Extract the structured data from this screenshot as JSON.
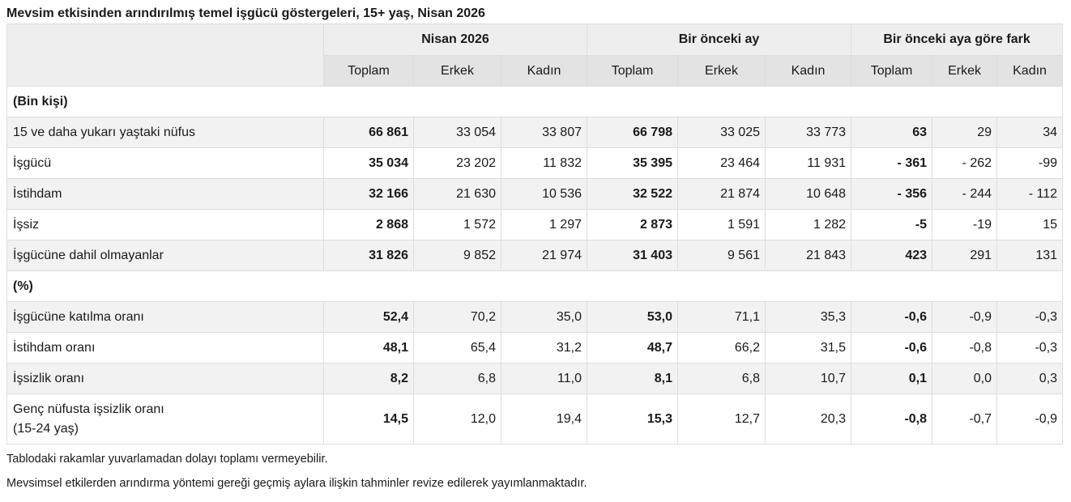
{
  "title": "Mevsim etkisinden arındırılmış temel işgücü göstergeleri, 15+ yaş, Nisan 2026",
  "header": {
    "groups": [
      "Nisan 2026",
      "Bir önceki ay",
      "Bir önceki aya göre fark"
    ],
    "subs": [
      "Toplam",
      "Erkek",
      "Kadın",
      "Toplam",
      "Erkek",
      "Kadın",
      "Toplam",
      "Erkek",
      "Kadın"
    ]
  },
  "sections": [
    {
      "label": "(Bin kişi)",
      "rows": [
        {
          "label": "15 ve daha yukarı yaştaki nüfus",
          "values": [
            "66 861",
            "33 054",
            "33 807",
            "66 798",
            "33 025",
            "33 773",
            "63",
            "29",
            "34"
          ]
        },
        {
          "label": "İşgücü",
          "values": [
            "35 034",
            "23 202",
            "11 832",
            "35 395",
            "23 464",
            "11 931",
            "- 361",
            "- 262",
            "-99"
          ]
        },
        {
          "label": "İstihdam",
          "values": [
            "32 166",
            "21 630",
            "10 536",
            "32 522",
            "21 874",
            "10 648",
            "- 356",
            "- 244",
            "- 112"
          ]
        },
        {
          "label": "İşsiz",
          "values": [
            "2 868",
            "1 572",
            "1 297",
            "2 873",
            "1 591",
            "1 282",
            "-5",
            "-19",
            "15"
          ]
        },
        {
          "label": "İşgücüne dahil olmayanlar",
          "values": [
            "31 826",
            "9 852",
            "21 974",
            "31 403",
            "9 561",
            "21 843",
            "423",
            "291",
            "131"
          ]
        }
      ]
    },
    {
      "label": "(%)",
      "rows": [
        {
          "label": "İşgücüne katılma oranı",
          "values": [
            "52,4",
            "70,2",
            "35,0",
            "53,0",
            "71,1",
            "35,3",
            "-0,6",
            "-0,9",
            "-0,3"
          ]
        },
        {
          "label": "İstihdam oranı",
          "values": [
            "48,1",
            "65,4",
            "31,2",
            "48,7",
            "66,2",
            "31,5",
            "-0,6",
            "-0,8",
            "-0,3"
          ]
        },
        {
          "label": "İşsizlik oranı",
          "values": [
            "8,2",
            "6,8",
            "11,0",
            "8,1",
            "6,8",
            "10,7",
            "0,1",
            "0,0",
            "0,3"
          ]
        },
        {
          "label": "Genç nüfusta işsizlik oranı",
          "label2": "(15-24 yaş)",
          "values": [
            "14,5",
            "12,0",
            "19,4",
            "15,3",
            "12,7",
            "20,3",
            "-0,8",
            "-0,7",
            "-0,9"
          ]
        }
      ]
    }
  ],
  "notes": [
    "Tablodaki rakamlar yuvarlamadan dolayı toplamı vermeyebilir.",
    "Mevsimsel etkilerden arındırma yöntemi gereği geçmiş aylara ilişkin tahminler revize edilerek yayımlanmaktadır."
  ]
}
